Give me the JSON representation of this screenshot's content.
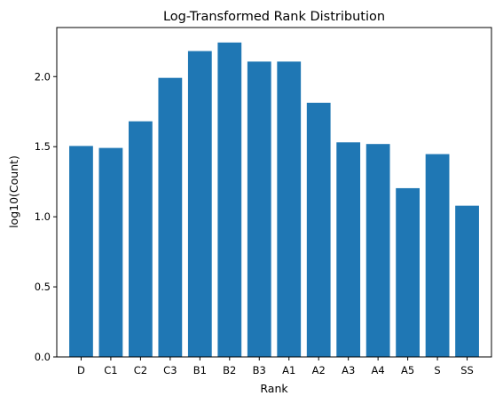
{
  "chart_data": {
    "type": "bar",
    "title": "Log-Transformed Rank Distribution",
    "xlabel": "Rank",
    "ylabel": "log10(Count)",
    "categories": [
      "D",
      "C1",
      "C2",
      "C3",
      "B1",
      "B2",
      "B3",
      "A1",
      "A2",
      "A3",
      "A4",
      "A5",
      "S",
      "SS"
    ],
    "values": [
      1.505,
      1.491,
      1.681,
      1.991,
      2.182,
      2.243,
      2.107,
      2.107,
      1.813,
      1.531,
      1.519,
      1.204,
      1.447,
      1.079
    ],
    "ylim": [
      0,
      2.35
    ],
    "yticks": [
      0.0,
      0.5,
      1.0,
      1.5,
      2.0
    ],
    "ytick_labels": [
      "0.0",
      "0.5",
      "1.0",
      "1.5",
      "2.0"
    ],
    "bar_color": "#1f77b4",
    "grid": false
  }
}
